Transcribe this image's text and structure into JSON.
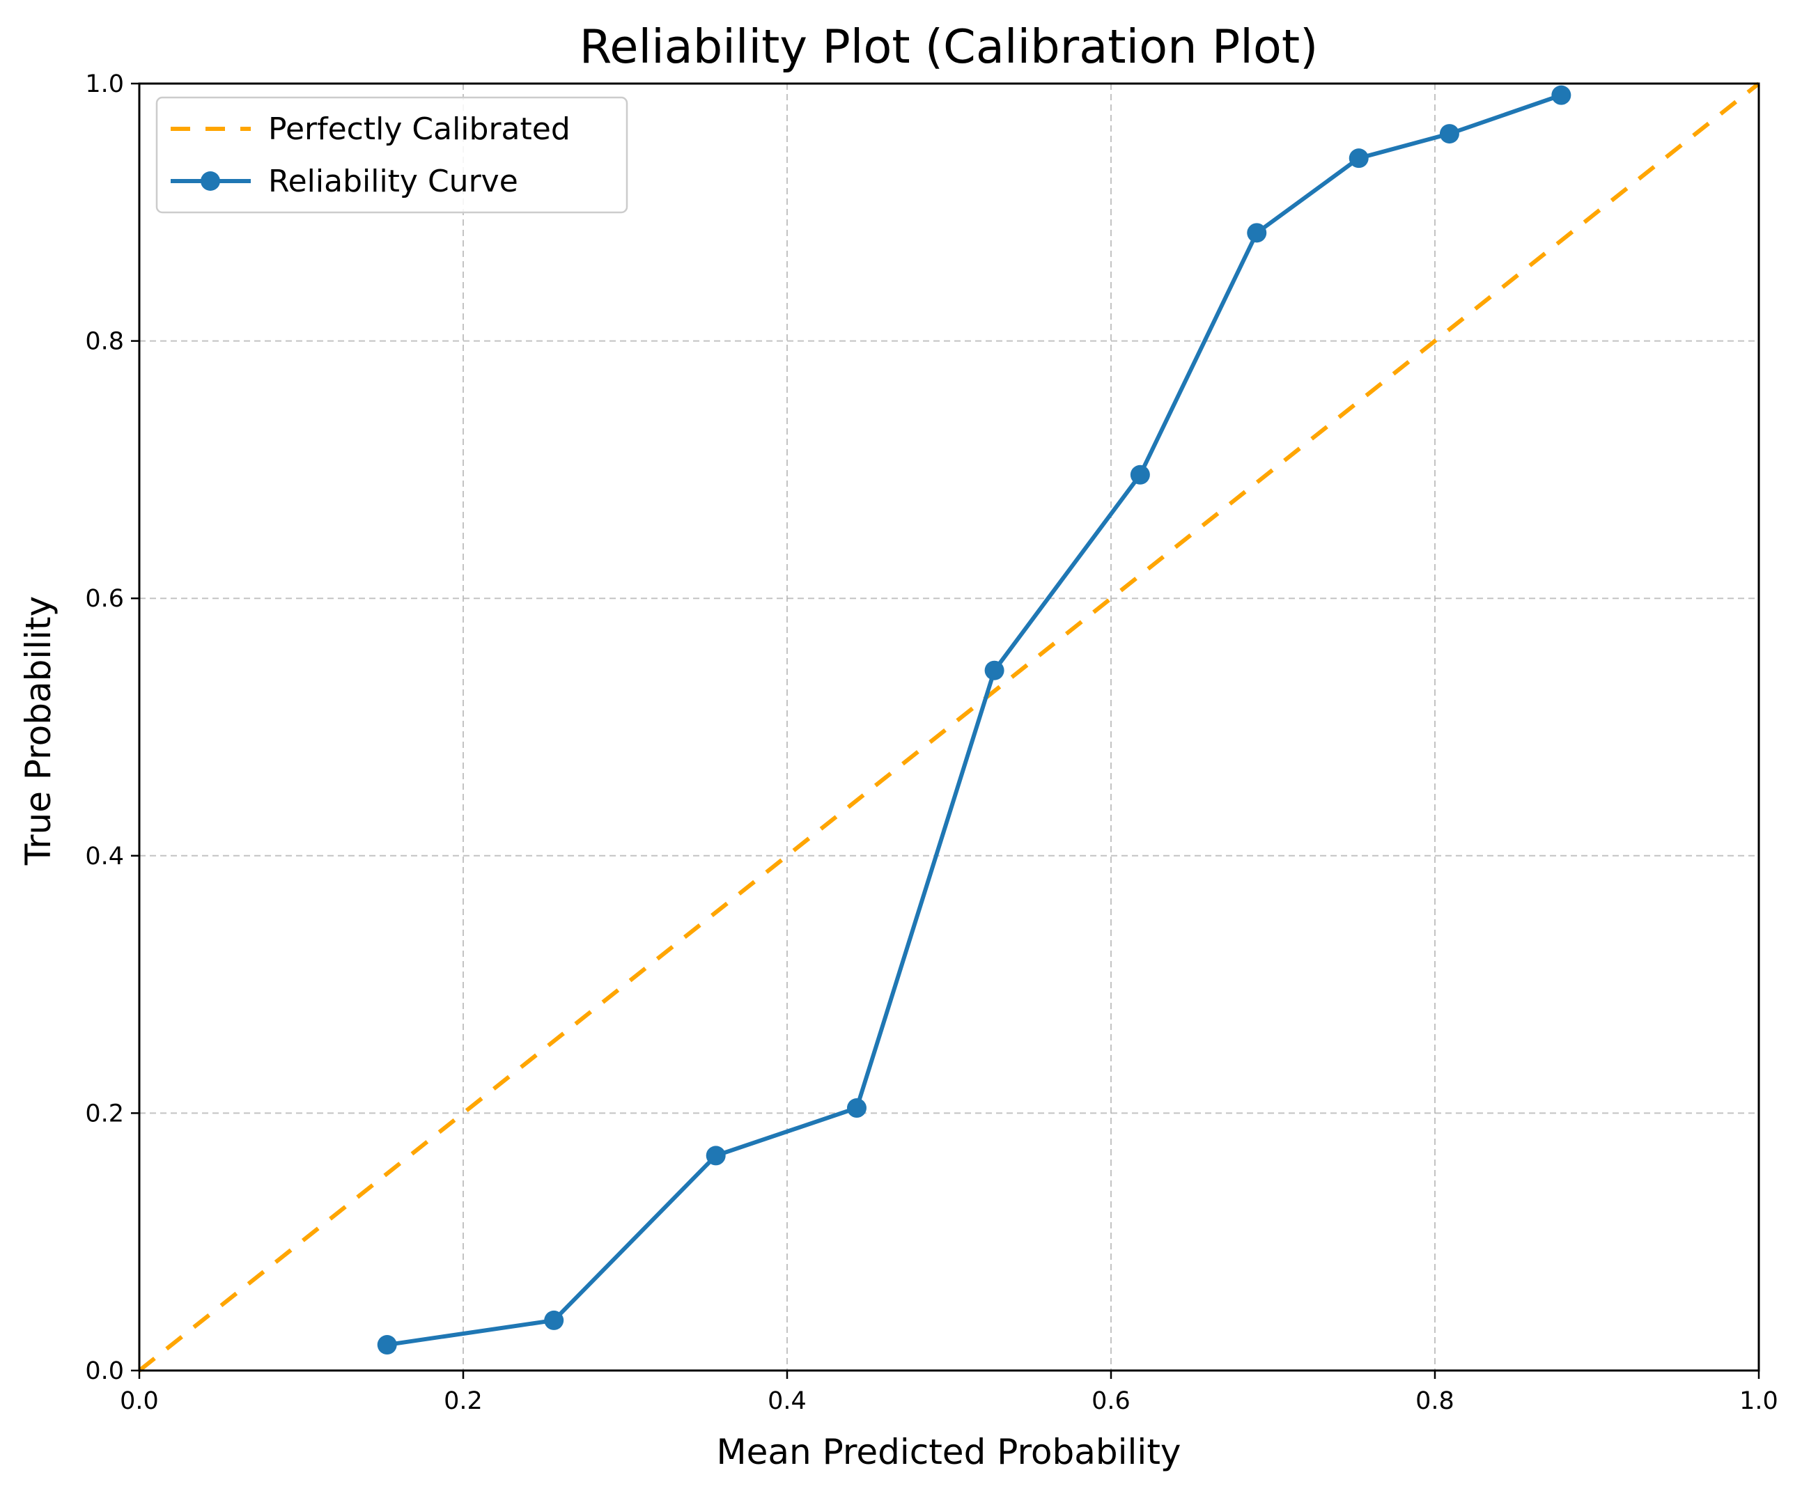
{
  "chart_data": {
    "type": "line",
    "title": "Reliability Plot (Calibration Plot)",
    "xlabel": "Mean Predicted Probability",
    "ylabel": "True Probability",
    "xlim": [
      0.0,
      1.0
    ],
    "ylim": [
      0.0,
      1.0
    ],
    "xticks": [
      "0.0",
      "0.2",
      "0.4",
      "0.6",
      "0.8",
      "1.0"
    ],
    "yticks": [
      "0.0",
      "0.2",
      "0.4",
      "0.6",
      "0.8",
      "1.0"
    ],
    "grid": true,
    "legend_position": "top-left",
    "series": [
      {
        "name": "Perfectly Calibrated",
        "style": "dashed",
        "color": "#FFA500",
        "x": [
          0.0,
          1.0
        ],
        "y": [
          0.0,
          1.0
        ]
      },
      {
        "name": "Reliability Curve",
        "style": "solid-markers",
        "color": "#1F77B4",
        "x": [
          0.153,
          0.256,
          0.356,
          0.443,
          0.528,
          0.618,
          0.69,
          0.753,
          0.809,
          0.878
        ],
        "y": [
          0.02,
          0.039,
          0.167,
          0.204,
          0.544,
          0.696,
          0.884,
          0.942,
          0.961,
          0.991
        ]
      }
    ]
  }
}
